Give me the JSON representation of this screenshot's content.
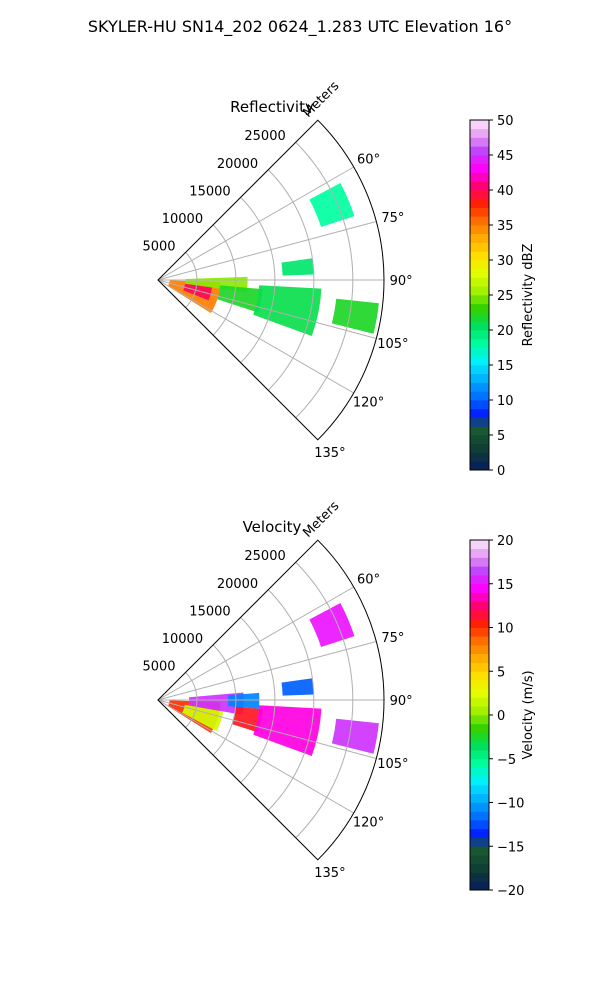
{
  "figure": {
    "title": "SKYLER-HU  SN14_202  0624_1.283 UTC Elevation 16°"
  },
  "chart_data": [
    {
      "type": "heatmap",
      "title": "Reflectivity",
      "projection": "polar sector",
      "radial_label": "Meters",
      "radial_ticks": [
        5000,
        10000,
        15000,
        20000,
        25000
      ],
      "radial_tick_labels": [
        "5000",
        "10000",
        "15000",
        "20000",
        "25000"
      ],
      "r_max": 29000,
      "azimuth_range_deg": [
        45,
        135
      ],
      "azimuth_ticks": [
        60,
        75,
        90,
        105,
        120,
        135
      ],
      "azimuth_tick_labels": [
        "60°",
        "75°",
        "90°",
        "105°",
        "120°",
        "135°"
      ],
      "grid": true,
      "colorbar": {
        "label": "Reflectivity dBZ",
        "range": [
          0,
          50
        ],
        "ticks": [
          0,
          5,
          10,
          15,
          20,
          25,
          30,
          35,
          40,
          45,
          50
        ],
        "tick_labels": [
          "0",
          "5",
          "10",
          "15",
          "20",
          "25",
          "30",
          "35",
          "40",
          "45",
          "50"
        ]
      },
      "echo_regions": [
        {
          "az": [
            92,
            122
          ],
          "r": [
            1500,
            8000
          ],
          "value": 35
        },
        {
          "az": [
            97,
            112
          ],
          "r": [
            3500,
            7000
          ],
          "value": 40
        },
        {
          "az": [
            88,
            98
          ],
          "r": [
            3500,
            11500
          ],
          "value": 25
        },
        {
          "az": [
            95,
            108
          ],
          "r": [
            8000,
            13500
          ],
          "value": 22
        },
        {
          "az": [
            93,
            110
          ],
          "r": [
            13000,
            21000
          ],
          "value": 21
        },
        {
          "az": [
            82,
            88
          ],
          "r": [
            16000,
            20000
          ],
          "value": 20
        },
        {
          "az": [
            62,
            72
          ],
          "r": [
            22000,
            26500
          ],
          "value": 18
        },
        {
          "az": [
            96,
            104
          ],
          "r": [
            23000,
            28500
          ],
          "value": 22
        }
      ]
    },
    {
      "type": "heatmap",
      "title": "Velocity",
      "projection": "polar sector",
      "radial_label": "Meters",
      "radial_ticks": [
        5000,
        10000,
        15000,
        20000,
        25000
      ],
      "radial_tick_labels": [
        "5000",
        "10000",
        "15000",
        "20000",
        "25000"
      ],
      "r_max": 29000,
      "azimuth_range_deg": [
        45,
        135
      ],
      "azimuth_ticks": [
        60,
        75,
        90,
        105,
        120,
        135
      ],
      "azimuth_tick_labels": [
        "60°",
        "75°",
        "90°",
        "105°",
        "120°",
        "135°"
      ],
      "grid": true,
      "colorbar": {
        "label": "Velocity (m/s)",
        "range": [
          -20,
          20
        ],
        "ticks": [
          -20,
          -15,
          -10,
          -5,
          0,
          5,
          10,
          15,
          20
        ],
        "tick_labels": [
          "−20",
          "−15",
          "−10",
          "−5",
          "0",
          "5",
          "10",
          "15",
          "20"
        ]
      },
      "echo_regions": [
        {
          "az": [
            92,
            122
          ],
          "r": [
            1500,
            8000
          ],
          "value": 10
        },
        {
          "az": [
            100,
            118
          ],
          "r": [
            3500,
            8500
          ],
          "value": 2
        },
        {
          "az": [
            85,
            100
          ],
          "r": [
            4000,
            11000
          ],
          "value": 16
        },
        {
          "az": [
            86,
            95
          ],
          "r": [
            9000,
            13000
          ],
          "value": -11
        },
        {
          "az": [
            95,
            108
          ],
          "r": [
            10000,
            13500
          ],
          "value": 11
        },
        {
          "az": [
            93,
            110
          ],
          "r": [
            13000,
            21000
          ],
          "value": 14
        },
        {
          "az": [
            82,
            88
          ],
          "r": [
            16000,
            20000
          ],
          "value": -12
        },
        {
          "az": [
            62,
            72
          ],
          "r": [
            22000,
            26500
          ],
          "value": 15
        },
        {
          "az": [
            96,
            104
          ],
          "r": [
            23000,
            28500
          ],
          "value": 16
        }
      ]
    }
  ]
}
